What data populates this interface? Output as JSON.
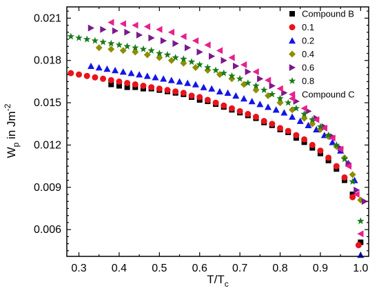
{
  "chart_data": {
    "type": "scatter",
    "x_axis": {
      "label_main": "T/T",
      "label_sub": "c",
      "range": [
        0.27,
        1.02
      ],
      "ticks": [
        0.3,
        0.4,
        0.5,
        0.6,
        0.7,
        0.8,
        0.9,
        1.0
      ],
      "tick_labels": [
        "0.3",
        "0.4",
        "0.5",
        "0.6",
        "0.7",
        "0.8",
        "0.9",
        "1.0"
      ]
    },
    "y_axis": {
      "label_main": "W",
      "label_sub": "p",
      "label_rest": " in Jm",
      "label_sup": "-2",
      "range": [
        0.0041,
        0.0218
      ],
      "ticks": [
        0.006,
        0.009,
        0.012,
        0.015,
        0.018,
        0.021
      ],
      "tick_labels": [
        "0.006",
        "0.009",
        "0.012",
        "0.015",
        "0.018",
        "0.021"
      ]
    },
    "legend_position": "top-right",
    "series": [
      {
        "name": "Compound B",
        "marker": "square",
        "color": "#000000",
        "x": [
          0.38,
          0.4,
          0.42,
          0.44,
          0.46,
          0.48,
          0.5,
          0.52,
          0.54,
          0.56,
          0.58,
          0.6,
          0.62,
          0.64,
          0.66,
          0.68,
          0.7,
          0.72,
          0.74,
          0.76,
          0.78,
          0.8,
          0.82,
          0.84,
          0.86,
          0.88,
          0.9,
          0.92,
          0.94,
          0.96,
          0.98,
          1.0
        ],
        "y": [
          0.0163,
          0.0162,
          0.0161,
          0.0161,
          0.016,
          0.016,
          0.0159,
          0.0158,
          0.0157,
          0.0156,
          0.0154,
          0.0152,
          0.0151,
          0.0149,
          0.0147,
          0.0145,
          0.0143,
          0.0141,
          0.0139,
          0.0136,
          0.0134,
          0.0131,
          0.0129,
          0.0125,
          0.0122,
          0.0118,
          0.0114,
          0.0109,
          0.0103,
          0.0095,
          0.0085,
          0.0051
        ]
      },
      {
        "name": "0.1",
        "marker": "circle",
        "color": "#e8141b",
        "x": [
          0.28,
          0.3,
          0.32,
          0.34,
          0.36,
          0.38,
          0.4,
          0.42,
          0.44,
          0.46,
          0.48,
          0.5,
          0.52,
          0.54,
          0.56,
          0.58,
          0.6,
          0.62,
          0.64,
          0.66,
          0.68,
          0.7,
          0.72,
          0.74,
          0.76,
          0.78,
          0.8,
          0.82,
          0.84,
          0.86,
          0.88,
          0.9,
          0.92,
          0.94,
          0.96,
          0.98,
          0.995
        ],
        "y": [
          0.0171,
          0.017,
          0.0169,
          0.0168,
          0.0167,
          0.0166,
          0.0165,
          0.0164,
          0.0163,
          0.0162,
          0.0161,
          0.016,
          0.0159,
          0.0158,
          0.0157,
          0.0155,
          0.0154,
          0.0152,
          0.015,
          0.0148,
          0.0146,
          0.0144,
          0.0142,
          0.014,
          0.0137,
          0.0135,
          0.0132,
          0.013,
          0.0127,
          0.0124,
          0.012,
          0.0116,
          0.0111,
          0.0105,
          0.0097,
          0.0083,
          0.0049
        ]
      },
      {
        "name": "0.2",
        "marker": "triangle-up",
        "color": "#1414e6",
        "x": [
          0.33,
          0.35,
          0.37,
          0.39,
          0.41,
          0.43,
          0.45,
          0.47,
          0.49,
          0.51,
          0.53,
          0.55,
          0.57,
          0.59,
          0.61,
          0.63,
          0.65,
          0.67,
          0.69,
          0.71,
          0.73,
          0.75,
          0.77,
          0.79,
          0.81,
          0.83,
          0.85,
          0.87,
          0.89,
          0.91,
          0.93,
          0.95,
          0.97,
          0.985,
          1.0
        ],
        "y": [
          0.0176,
          0.0175,
          0.0174,
          0.0173,
          0.0172,
          0.0171,
          0.017,
          0.0169,
          0.0168,
          0.0167,
          0.0166,
          0.0165,
          0.0164,
          0.0163,
          0.0161,
          0.016,
          0.0158,
          0.0157,
          0.0155,
          0.0153,
          0.0151,
          0.0149,
          0.0147,
          0.0145,
          0.0143,
          0.014,
          0.0137,
          0.0134,
          0.0131,
          0.0127,
          0.0122,
          0.0116,
          0.0107,
          0.0095,
          0.0042
        ]
      },
      {
        "name": "0.4",
        "marker": "diamond",
        "color": "#8e8e00",
        "x": [
          0.35,
          0.38,
          0.41,
          0.44,
          0.47,
          0.5,
          0.53,
          0.56,
          0.59,
          0.62,
          0.65,
          0.68,
          0.71,
          0.74,
          0.77,
          0.8,
          0.83,
          0.86,
          0.88,
          0.9,
          0.92,
          0.94,
          0.96,
          0.98,
          1.0
        ],
        "y": [
          0.0189,
          0.0188,
          0.0187,
          0.0186,
          0.0184,
          0.0182,
          0.018,
          0.0178,
          0.0175,
          0.0173,
          0.017,
          0.0167,
          0.0163,
          0.0159,
          0.0155,
          0.015,
          0.0145,
          0.0139,
          0.0135,
          0.0131,
          0.0126,
          0.0119,
          0.0111,
          0.0099,
          0.0081
        ]
      },
      {
        "name": "0.6",
        "marker": "triangle-right",
        "color": "#7a1a8c",
        "x": [
          0.33,
          0.36,
          0.39,
          0.42,
          0.45,
          0.48,
          0.51,
          0.54,
          0.57,
          0.6,
          0.63,
          0.66,
          0.69,
          0.72,
          0.75,
          0.78,
          0.81,
          0.84,
          0.87,
          0.89,
          0.91,
          0.93,
          0.95,
          0.97,
          0.99,
          1.01
        ],
        "y": [
          0.0203,
          0.0202,
          0.0201,
          0.02,
          0.0198,
          0.0196,
          0.0194,
          0.0192,
          0.0189,
          0.0186,
          0.0183,
          0.018,
          0.0176,
          0.0172,
          0.0167,
          0.0162,
          0.0157,
          0.0151,
          0.0144,
          0.0139,
          0.0133,
          0.0126,
          0.0118,
          0.0107,
          0.0088,
          0.008
        ]
      },
      {
        "name": "0.8",
        "marker": "star",
        "color": "#1a7a1a",
        "x": [
          0.28,
          0.3,
          0.32,
          0.34,
          0.36,
          0.38,
          0.4,
          0.42,
          0.44,
          0.46,
          0.48,
          0.5,
          0.52,
          0.54,
          0.56,
          0.58,
          0.6,
          0.62,
          0.64,
          0.66,
          0.68,
          0.7,
          0.72,
          0.74,
          0.76,
          0.78,
          0.8,
          0.82,
          0.84,
          0.86,
          0.88,
          0.9,
          0.92,
          0.94,
          0.96,
          0.98,
          1.0
        ],
        "y": [
          0.0197,
          0.0196,
          0.0195,
          0.0194,
          0.0193,
          0.0192,
          0.0191,
          0.019,
          0.0189,
          0.0188,
          0.0187,
          0.0185,
          0.0184,
          0.0182,
          0.0181,
          0.0179,
          0.0177,
          0.0175,
          0.0173,
          0.0171,
          0.0169,
          0.0167,
          0.0164,
          0.0162,
          0.0159,
          0.0156,
          0.0153,
          0.015,
          0.0146,
          0.0142,
          0.0138,
          0.0133,
          0.0127,
          0.012,
          0.011,
          0.0094,
          0.0066
        ]
      },
      {
        "name": "Compound C",
        "marker": "triangle-left",
        "color": "#e8208c",
        "x": [
          0.38,
          0.41,
          0.44,
          0.47,
          0.5,
          0.53,
          0.56,
          0.59,
          0.62,
          0.65,
          0.68,
          0.71,
          0.74,
          0.77,
          0.8,
          0.83,
          0.86,
          0.89,
          0.91,
          0.93,
          0.95,
          0.97,
          0.99,
          1.0
        ],
        "y": [
          0.0207,
          0.0206,
          0.0205,
          0.0204,
          0.0202,
          0.02,
          0.0197,
          0.0194,
          0.0191,
          0.0187,
          0.0182,
          0.0177,
          0.0172,
          0.0166,
          0.016,
          0.0153,
          0.0146,
          0.0138,
          0.0132,
          0.0125,
          0.0117,
          0.0105,
          0.0085,
          0.0057
        ]
      }
    ]
  }
}
